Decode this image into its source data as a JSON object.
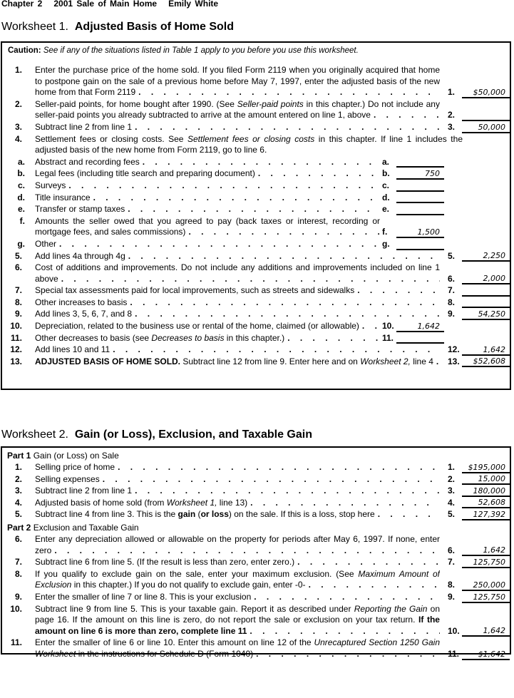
{
  "header": "Chapter 2   2001 Sale of Main Home   Emily White",
  "worksheet1": {
    "title_prefix": "Worksheet 1.",
    "title": "Adjusted Basis of Home Sold",
    "caution_label": "Caution:",
    "caution_text": "See if any of the situations listed in Table 1 apply to you before you use this worksheet.",
    "rows": [
      {
        "num": "1.",
        "col": "main",
        "label": "1.",
        "value": "$50,000",
        "leader": true,
        "segments": [
          {
            "text": "Enter the purchase price of the home sold. If you filed Form 2119 when you originally acquired that home to postpone gain on the sale of a previous home before May 7, 1997, enter the adjusted basis of the new home from that Form 2119"
          }
        ]
      },
      {
        "num": "2.",
        "col": "main",
        "label": "2.",
        "value": "",
        "leader": true,
        "segments": [
          {
            "text": "Seller-paid points, for home bought after 1990. (See "
          },
          {
            "text": "Seller-paid points",
            "style": "i"
          },
          {
            "text": " in this chapter.) Do not include any seller-paid points you already subtracted to arrive at the amount entered on line 1, above"
          }
        ]
      },
      {
        "num": "3.",
        "col": "main",
        "label": "3.",
        "value": "50,000",
        "leader": true,
        "segments": [
          {
            "text": "Subtract line 2 from line 1"
          }
        ]
      },
      {
        "num": "4.",
        "col": "none",
        "leader": false,
        "segments": [
          {
            "text": "Settlement fees or closing costs. See "
          },
          {
            "text": "Settlement fees or closing costs",
            "style": "i"
          },
          {
            "text": " in this chapter. If line 1 includes the adjusted basis of the new home from Form 2119, go to line 6."
          }
        ]
      },
      {
        "num": "a.",
        "letter": true,
        "col": "sub",
        "label": "a.",
        "value": "",
        "leader": true,
        "segments": [
          {
            "text": "Abstract and recording fees"
          }
        ]
      },
      {
        "num": "b.",
        "letter": true,
        "col": "sub",
        "label": "b.",
        "value": "750",
        "leader": true,
        "segments": [
          {
            "text": "Legal fees (including title search and preparing document)"
          }
        ]
      },
      {
        "num": "c.",
        "letter": true,
        "col": "sub",
        "label": "c.",
        "value": "",
        "leader": true,
        "segments": [
          {
            "text": "Surveys"
          }
        ]
      },
      {
        "num": "d.",
        "letter": true,
        "col": "sub",
        "label": "d.",
        "value": "",
        "leader": true,
        "segments": [
          {
            "text": "Title insurance"
          }
        ]
      },
      {
        "num": "e.",
        "letter": true,
        "col": "sub",
        "label": "e.",
        "value": "",
        "leader": true,
        "segments": [
          {
            "text": "Transfer or stamp taxes"
          }
        ]
      },
      {
        "num": "f.",
        "letter": true,
        "col": "sub",
        "label": "f.",
        "value": "1,500",
        "leader": true,
        "segments": [
          {
            "text": "Amounts the seller owed that you agreed to pay (back taxes or interest, recording or mortgage fees, and sales commissions)"
          }
        ]
      },
      {
        "num": "g.",
        "letter": true,
        "col": "sub",
        "label": "g.",
        "value": "",
        "leader": true,
        "segments": [
          {
            "text": "Other"
          }
        ]
      },
      {
        "num": "5.",
        "col": "main",
        "label": "5.",
        "value": "2,250",
        "leader": true,
        "segments": [
          {
            "text": "Add lines 4a through 4g"
          }
        ]
      },
      {
        "num": "6.",
        "col": "main",
        "label": "6.",
        "value": "2,000",
        "leader": true,
        "segments": [
          {
            "text": "Cost of additions and improvements. Do not include any additions and improvements included on line 1 above"
          }
        ]
      },
      {
        "num": "7.",
        "col": "main",
        "label": "7.",
        "value": "",
        "leader": true,
        "segments": [
          {
            "text": "Special tax assessments paid for local improvements, such as streets and sidewalks"
          }
        ]
      },
      {
        "num": "8.",
        "col": "main",
        "label": "8.",
        "value": "",
        "leader": true,
        "segments": [
          {
            "text": "Other increases to basis"
          }
        ]
      },
      {
        "num": "9.",
        "col": "main",
        "label": "9.",
        "value": "54,250",
        "leader": true,
        "segments": [
          {
            "text": "Add lines 3, 5, 6, 7, and 8"
          }
        ]
      },
      {
        "num": "10.",
        "col": "sub",
        "label": "10.",
        "value": "1,642",
        "leader": true,
        "segments": [
          {
            "text": "Depreciation, related to the business use or rental of the home, claimed (or allowable)"
          }
        ]
      },
      {
        "num": "11.",
        "col": "sub",
        "label": "11.",
        "value": "",
        "leader": true,
        "segments": [
          {
            "text": "Other decreases to basis (see "
          },
          {
            "text": "Decreases to basis",
            "style": "i"
          },
          {
            "text": " in this chapter.)"
          }
        ]
      },
      {
        "num": "12.",
        "col": "main",
        "label": "12.",
        "value": "1,642",
        "leader": true,
        "segments": [
          {
            "text": "Add lines 10 and 11"
          }
        ]
      },
      {
        "num": "13.",
        "col": "main",
        "label": "13.",
        "value": "$52,608",
        "leader": true,
        "segments": [
          {
            "text": "ADJUSTED BASIS OF HOME SOLD.",
            "style": "b"
          },
          {
            "text": " Subtract line 12 from line 9. Enter here and on "
          },
          {
            "text": "Worksheet 2,",
            "style": "i"
          },
          {
            "text": " line 4"
          }
        ]
      }
    ]
  },
  "worksheet2": {
    "title_prefix": "Worksheet 2.",
    "title": "Gain (or Loss), Exclusion, and Taxable Gain",
    "part1": {
      "label": "Part 1",
      "title": "Gain (or Loss) on Sale"
    },
    "part2": {
      "label": "Part 2",
      "title": "Exclusion and Taxable Gain"
    },
    "rows_part1": [
      {
        "num": "1.",
        "col": "main",
        "label": "1.",
        "value": "$195,000",
        "leader": true,
        "segments": [
          {
            "text": "Selling price of home"
          }
        ]
      },
      {
        "num": "2.",
        "col": "main",
        "label": "2.",
        "value": "15,000",
        "leader": true,
        "segments": [
          {
            "text": "Selling expenses"
          }
        ]
      },
      {
        "num": "3.",
        "col": "main",
        "label": "3.",
        "value": "180,000",
        "leader": true,
        "segments": [
          {
            "text": "Subtract line 2 from line 1"
          }
        ]
      },
      {
        "num": "4.",
        "col": "main",
        "label": "4.",
        "value": "52,608",
        "leader": true,
        "segments": [
          {
            "text": "Adjusted basis of home sold (from "
          },
          {
            "text": "Worksheet 1,",
            "style": "i"
          },
          {
            "text": " line 13)"
          }
        ]
      },
      {
        "num": "5.",
        "col": "main",
        "label": "5.",
        "value": "127,392",
        "leader": true,
        "segments": [
          {
            "text": "Subtract line 4 from line 3. This is the "
          },
          {
            "text": "gain",
            "style": "b"
          },
          {
            "text": " ("
          },
          {
            "text": "or loss",
            "style": "b"
          },
          {
            "text": ") on the sale. If this is a loss, stop here"
          }
        ]
      }
    ],
    "rows_part2": [
      {
        "num": "6.",
        "col": "main",
        "label": "6.",
        "value": "1,642",
        "leader": true,
        "segments": [
          {
            "text": "Enter any depreciation allowed or allowable on the property for periods after May 6, 1997. If none, enter zero"
          }
        ]
      },
      {
        "num": "7.",
        "col": "main",
        "label": "7.",
        "value": "125,750",
        "leader": true,
        "segments": [
          {
            "text": "Subtract line 6 from line 5. (If the result is less than zero, enter zero.)"
          }
        ]
      },
      {
        "num": "8.",
        "col": "main",
        "label": "8.",
        "value": "250,000",
        "leader": true,
        "segments": [
          {
            "text": "If you qualify to exclude gain on the sale, enter your maximum exclusion. (See "
          },
          {
            "text": "Maximum Amount of Exclusion",
            "style": "i"
          },
          {
            "text": " in this chapter.) If you do not qualify to exclude gain, enter -0-"
          }
        ]
      },
      {
        "num": "9.",
        "col": "main",
        "label": "9.",
        "value": "125,750",
        "leader": true,
        "segments": [
          {
            "text": "Enter the smaller of line 7 or line 8. This is your exclusion"
          }
        ]
      },
      {
        "num": "10.",
        "col": "main",
        "label": "10.",
        "value": "1,642",
        "leader": true,
        "segments": [
          {
            "text": "Subtract line 9 from line 5. This is your taxable gain. Report it as described under "
          },
          {
            "text": "Reporting the Gain",
            "style": "i"
          },
          {
            "text": " on page 16. If the amount on this line is zero, do not report the sale or exclusion on your tax return. "
          },
          {
            "text": "If the amount on line 6 is more than zero, complete line 11",
            "style": "b"
          }
        ]
      },
      {
        "num": "11.",
        "col": "main",
        "label": "11.",
        "value": "$1,642",
        "leader": true,
        "segments": [
          {
            "text": "Enter the smaller of line 6 or line 10. Enter this amount on line 12 of the "
          },
          {
            "text": "Unrecaptured Section 1250 Gain Worksheet",
            "style": "i"
          },
          {
            "text": " in the instructions for Schedule D (Form 1040)"
          }
        ]
      }
    ]
  }
}
